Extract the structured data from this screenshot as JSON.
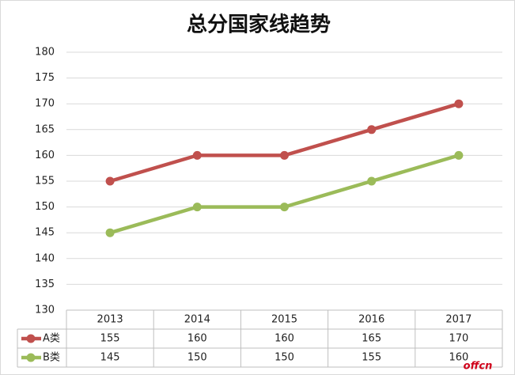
{
  "chart_data": {
    "type": "line",
    "title": "总分国家线趋势",
    "categories": [
      "2013",
      "2014",
      "2015",
      "2016",
      "2017"
    ],
    "series": [
      {
        "name": "A类",
        "color": "#c0504d",
        "values": [
          155,
          160,
          160,
          165,
          170
        ]
      },
      {
        "name": "B类",
        "color": "#9bbb59",
        "values": [
          145,
          150,
          150,
          155,
          160
        ]
      }
    ],
    "ylim": [
      130,
      180
    ],
    "yticks": [
      130,
      135,
      140,
      145,
      150,
      155,
      160,
      165,
      170,
      175,
      180
    ],
    "grid": true,
    "watermark": "offcn"
  }
}
